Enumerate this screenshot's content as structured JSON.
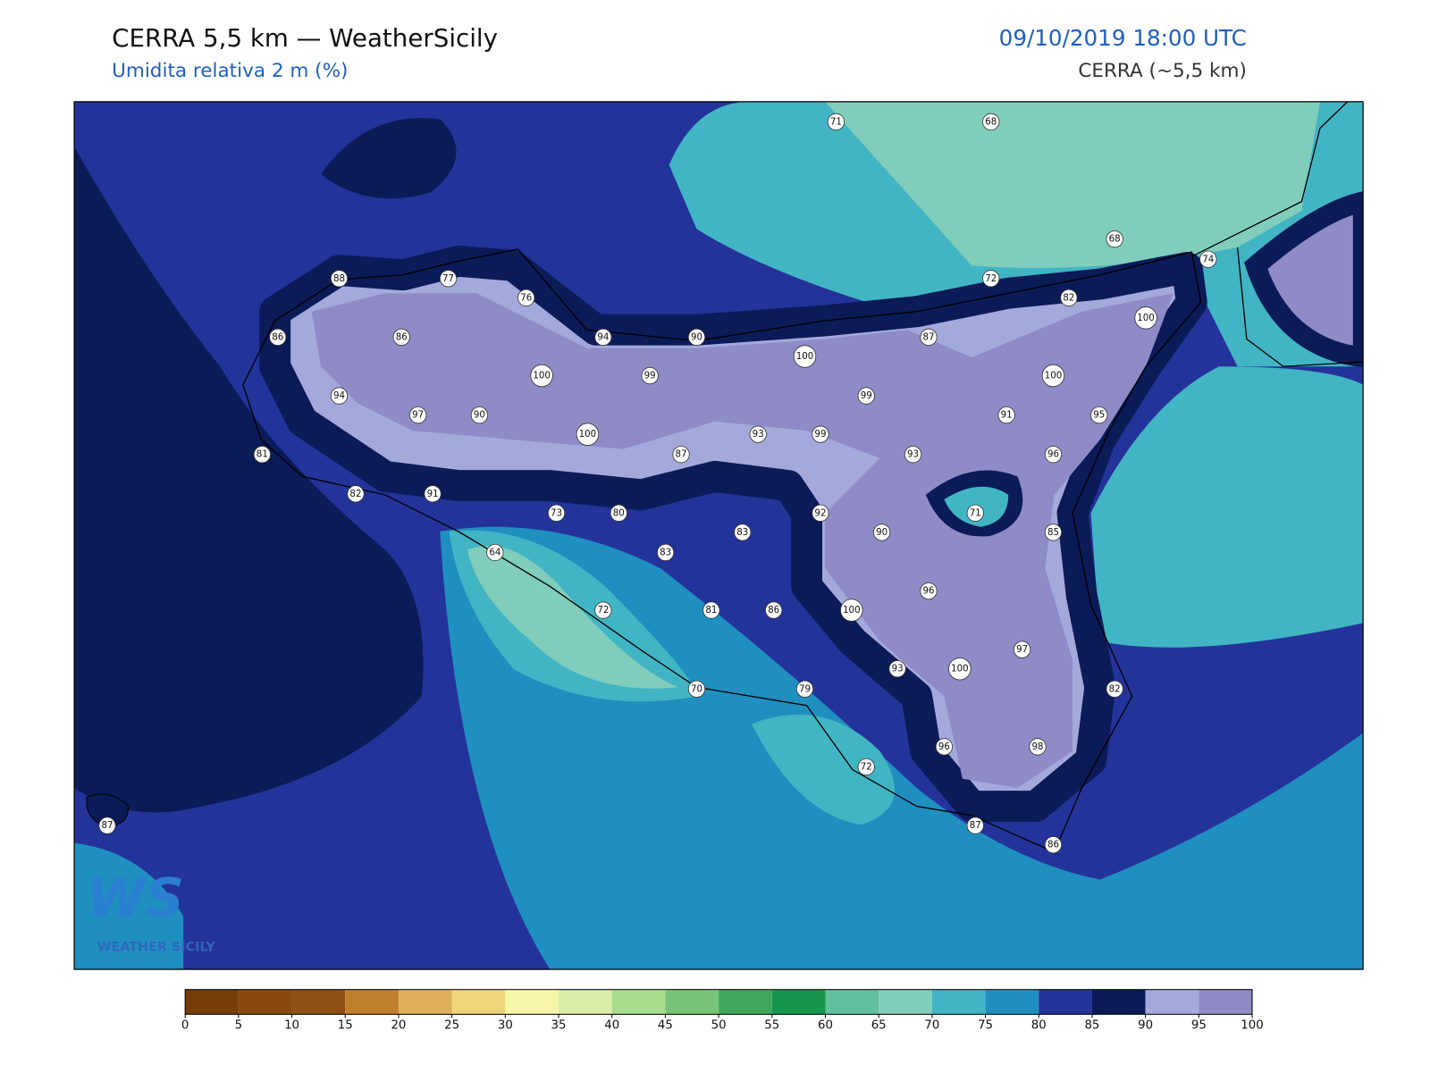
{
  "header": {
    "title": "CERRA 5,5 km — WeatherSicily",
    "subtitle": "Umidita relativa 2 m (%)",
    "datetime": "09/10/2019 18:00 UTC",
    "model": "CERRA (~5,5 km)"
  },
  "stations": [
    71,
    68,
    68,
    74,
    72,
    82,
    100,
    88,
    77,
    76,
    86,
    86,
    94,
    90,
    87,
    100,
    100,
    99,
    100,
    94,
    99,
    97,
    90,
    91,
    95,
    100,
    93,
    99,
    81,
    87,
    93,
    96,
    82,
    91,
    73,
    80,
    92,
    71,
    83,
    90,
    85,
    64,
    83,
    96,
    72,
    81,
    86,
    100,
    97,
    93,
    100,
    70,
    79,
    82,
    96,
    98,
    72,
    87,
    87,
    86
  ],
  "colorbar": {
    "ticks": [
      0,
      5,
      10,
      15,
      20,
      25,
      30,
      35,
      40,
      45,
      50,
      55,
      60,
      65,
      70,
      75,
      80,
      85,
      90,
      95,
      100
    ],
    "colors": [
      "#773d09",
      "#8a4a0f",
      "#8f5014",
      "#c07f2b",
      "#dfb05b",
      "#efd47a",
      "#f7f5a8",
      "#d9eda8",
      "#a8dc8e",
      "#78c479",
      "#3fa75b",
      "#17964f",
      "#62c0a0",
      "#80cdbb",
      "#42b5c4",
      "#1f8fc0",
      "#23339a",
      "#0b1b58",
      "#a4a9db",
      "#8e8bc7"
    ]
  },
  "logo": {
    "mark": "WS",
    "text": "WEATHER SICILY"
  }
}
